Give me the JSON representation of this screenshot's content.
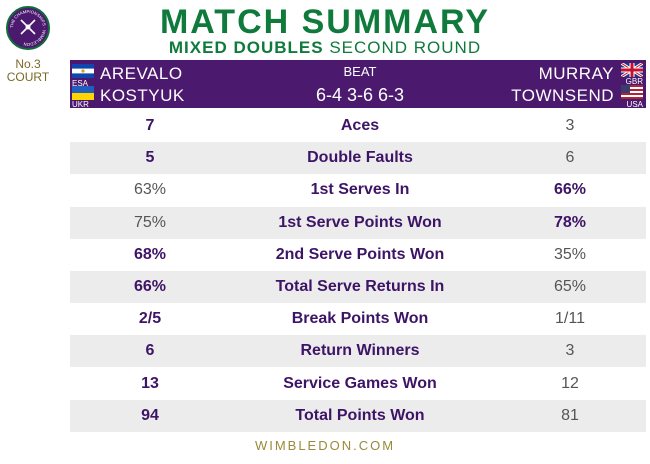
{
  "logo": {
    "ring_text": "THE CHAMPIONSHIPS · WIMBLEDON",
    "icon": "wimbledon-logo-icon"
  },
  "court": {
    "line1": "No.3",
    "line2": "COURT"
  },
  "header": {
    "title": "MATCH SUMMARY",
    "subtitle_bold": "MIXED DOUBLES",
    "subtitle_rest": "SECOND ROUND"
  },
  "colors": {
    "purple": "#4b1a6e",
    "green": "#0f7a3c"
  },
  "match": {
    "result": "BEAT",
    "score": "6-4 3-6 6-3",
    "team_left": [
      {
        "name": "AREVALO",
        "country": "ESA"
      },
      {
        "name": "KOSTYUK",
        "country": "UKR"
      }
    ],
    "team_right": [
      {
        "name": "MURRAY",
        "country": "GBR"
      },
      {
        "name": "TOWNSEND",
        "country": "USA"
      }
    ]
  },
  "stats": [
    {
      "label": "Aces",
      "left": "7",
      "right": "3",
      "leader": "left"
    },
    {
      "label": "Double Faults",
      "left": "5",
      "right": "6",
      "leader": "left"
    },
    {
      "label": "1st Serves In",
      "left": "63%",
      "right": "66%",
      "leader": "right"
    },
    {
      "label": "1st Serve Points Won",
      "left": "75%",
      "right": "78%",
      "leader": "right"
    },
    {
      "label": "2nd Serve Points Won",
      "left": "68%",
      "right": "35%",
      "leader": "left"
    },
    {
      "label": "Total Serve Returns In",
      "left": "66%",
      "right": "65%",
      "leader": "left"
    },
    {
      "label": "Break Points Won",
      "left": "2/5",
      "right": "1/11",
      "leader": "left"
    },
    {
      "label": "Return Winners",
      "left": "6",
      "right": "3",
      "leader": "left"
    },
    {
      "label": "Service Games Won",
      "left": "13",
      "right": "12",
      "leader": "left"
    },
    {
      "label": "Total Points Won",
      "left": "94",
      "right": "81",
      "leader": "left"
    }
  ],
  "footer": "WIMBLEDON.COM"
}
